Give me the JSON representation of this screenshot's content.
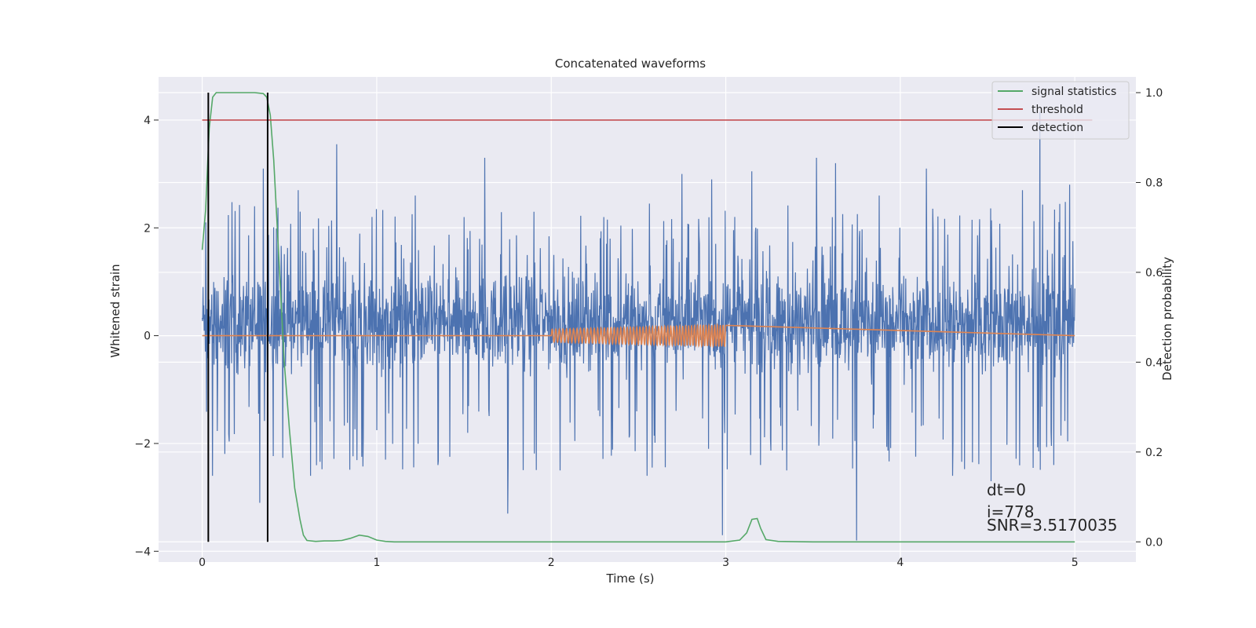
{
  "chart_data": {
    "type": "line",
    "title": "Concatenated waveforms",
    "xlabel": "Time (s)",
    "ylabel": "Whitened strain",
    "y2label": "Detection probability",
    "xlim": [
      -0.25,
      5.35
    ],
    "ylim": [
      -4.2,
      4.8
    ],
    "y2lim": [
      -0.045,
      1.035
    ],
    "x_ticks": [
      0,
      1,
      2,
      3,
      4,
      5
    ],
    "y_ticks": [
      -4,
      -2,
      0,
      2,
      4
    ],
    "y2_ticks": [
      0.0,
      0.2,
      0.4,
      0.6,
      0.8,
      1.0
    ],
    "x_tick_labels": [
      "0",
      "1",
      "2",
      "3",
      "4",
      "5"
    ],
    "y_tick_labels": [
      "−4",
      "−2",
      "0",
      "2",
      "4"
    ],
    "y2_tick_labels": [
      "0.0",
      "0.2",
      "0.4",
      "0.6",
      "0.8",
      "1.0"
    ],
    "grid": true,
    "legend_position": "top-right",
    "colors": {
      "background": "#eaeaf2",
      "grid": "#ffffff",
      "strain": "#4c72b0",
      "template": "#dd8452",
      "signal_statistics": "#55a868",
      "threshold": "#c44e52",
      "detection": "#000000"
    },
    "series": [
      {
        "name": "signal statistics",
        "axis": "right",
        "x": [
          0.0,
          0.02,
          0.04,
          0.06,
          0.08,
          0.1,
          0.15,
          0.2,
          0.25,
          0.3,
          0.35,
          0.37,
          0.39,
          0.41,
          0.43,
          0.45,
          0.47,
          0.5,
          0.53,
          0.56,
          0.58,
          0.6,
          0.65,
          0.7,
          0.75,
          0.8,
          0.85,
          0.9,
          0.95,
          1.0,
          1.05,
          1.1,
          1.5,
          2.0,
          2.5,
          3.0,
          3.08,
          3.12,
          3.15,
          3.18,
          3.2,
          3.23,
          3.3,
          3.5,
          4.0,
          4.5,
          5.0
        ],
        "y": [
          0.65,
          0.74,
          0.92,
          0.99,
          1.0,
          1.0,
          1.0,
          1.0,
          1.0,
          1.0,
          0.998,
          0.99,
          0.95,
          0.85,
          0.7,
          0.55,
          0.4,
          0.25,
          0.12,
          0.05,
          0.015,
          0.003,
          0.001,
          0.002,
          0.002,
          0.003,
          0.008,
          0.015,
          0.012,
          0.004,
          0.001,
          0.0,
          0.0,
          0.0,
          0.0,
          0.0,
          0.004,
          0.02,
          0.05,
          0.052,
          0.03,
          0.005,
          0.001,
          0.0,
          0.0,
          0.0,
          0.0
        ]
      },
      {
        "name": "threshold",
        "axis": "left",
        "x": [
          0.0,
          5.1
        ],
        "y": [
          4.0,
          4.0
        ]
      },
      {
        "name": "detection",
        "axis": "right",
        "x": [
          0.035,
          0.375
        ],
        "y_range": [
          0.0,
          1.0
        ]
      },
      {
        "name": "",
        "role": "whitened strain noise",
        "axis": "left",
        "x_range": [
          0.0,
          5.0
        ],
        "typical_range": [
          -0.9,
          1.4
        ],
        "peak_samples": [
          {
            "x": 0.02,
            "y": 2.1
          },
          {
            "x": 0.06,
            "y": -2.6
          },
          {
            "x": 0.3,
            "y": 2.4
          },
          {
            "x": 0.33,
            "y": -3.1
          },
          {
            "x": 0.35,
            "y": 3.1
          },
          {
            "x": 0.55,
            "y": 2.7
          },
          {
            "x": 0.62,
            "y": -2.6
          },
          {
            "x": 0.77,
            "y": 3.55
          },
          {
            "x": 1.05,
            "y": -2.3
          },
          {
            "x": 1.22,
            "y": 2.6
          },
          {
            "x": 1.35,
            "y": -2.4
          },
          {
            "x": 1.5,
            "y": 2.2
          },
          {
            "x": 1.62,
            "y": 3.3
          },
          {
            "x": 1.75,
            "y": -3.3
          },
          {
            "x": 1.9,
            "y": 2.3
          },
          {
            "x": 2.05,
            "y": -2.5
          },
          {
            "x": 2.3,
            "y": 2.2
          },
          {
            "x": 2.55,
            "y": -2.6
          },
          {
            "x": 2.75,
            "y": 3.0
          },
          {
            "x": 2.92,
            "y": 2.9
          },
          {
            "x": 2.98,
            "y": -3.7
          },
          {
            "x": 3.15,
            "y": 3.05
          },
          {
            "x": 3.35,
            "y": -2.5
          },
          {
            "x": 3.52,
            "y": 3.3
          },
          {
            "x": 3.63,
            "y": 3.2
          },
          {
            "x": 3.75,
            "y": -3.8
          },
          {
            "x": 3.88,
            "y": 2.6
          },
          {
            "x": 4.15,
            "y": 3.1
          },
          {
            "x": 4.3,
            "y": -2.6
          },
          {
            "x": 4.52,
            "y": -2.7
          },
          {
            "x": 4.7,
            "y": 2.7
          },
          {
            "x": 4.8,
            "y": 4.15
          },
          {
            "x": 4.88,
            "y": -2.4
          },
          {
            "x": 4.97,
            "y": 2.8
          }
        ]
      },
      {
        "name": "",
        "role": "injected chirp template",
        "axis": "left",
        "x_range": [
          0.0,
          5.0
        ],
        "chirp_window": [
          2.0,
          3.0
        ],
        "amplitude_start": 0.12,
        "amplitude_end": 0.2,
        "cycles": 48
      }
    ],
    "annotations": [
      "dt=0",
      "i=778",
      "SNR=3.5170035"
    ]
  }
}
